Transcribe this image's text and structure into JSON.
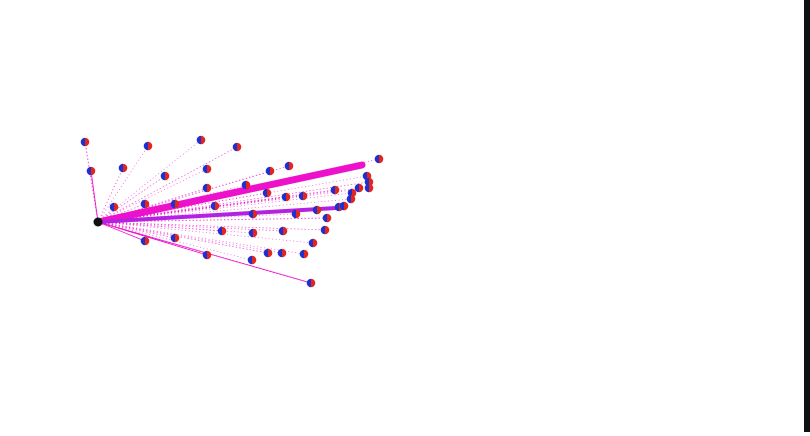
{
  "scene": {
    "background": "#ffffff",
    "edge_color": "#111111",
    "hub_color": "#111111",
    "node_colors": {
      "left": "#1f2fd0",
      "right": "#e0261f"
    },
    "link_color": "#ee11cc",
    "thick_link_color": "#ee11cc",
    "mid_link_color": "#b322e0"
  }
}
